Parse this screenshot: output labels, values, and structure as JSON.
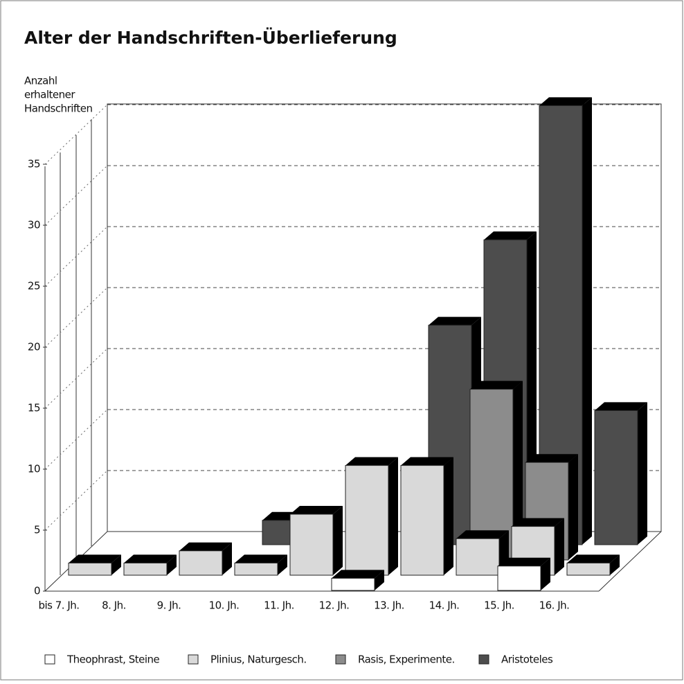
{
  "chart_data": {
    "type": "bar3d",
    "title": "Alter der Handschriften-Überlieferung",
    "y_label": [
      "Anzahl",
      "erhaltener",
      "Handschriften"
    ],
    "categories": [
      "bis 7. Jh.",
      "8. Jh.",
      "9. Jh.",
      "10. Jh.",
      "11. Jh.",
      "12. Jh.",
      "13. Jh.",
      "14. Jh.",
      "15. Jh.",
      "16. Jh."
    ],
    "series": [
      {
        "name": "Theophrast, Steine",
        "color": "#ffffff",
        "values": [
          null,
          null,
          null,
          null,
          null,
          1,
          null,
          null,
          2,
          null
        ]
      },
      {
        "name": "Plinius, Naturgesch.",
        "color": "#d9d9d9",
        "values": [
          1,
          1,
          2,
          1,
          5,
          9,
          9,
          3,
          4,
          1
        ]
      },
      {
        "name": "Rasis, Experimente.",
        "color": "#8c8c8c",
        "values": [
          null,
          null,
          null,
          null,
          null,
          null,
          null,
          14,
          8,
          null
        ]
      },
      {
        "name": "Aristoteles",
        "color": "#4d4d4d",
        "values": [
          null,
          null,
          null,
          2,
          null,
          null,
          18,
          25,
          36,
          11
        ]
      }
    ],
    "ylim": [
      0,
      35
    ],
    "yticks": [
      0,
      5,
      10,
      15,
      20,
      25,
      30,
      35
    ],
    "grid": true
  }
}
